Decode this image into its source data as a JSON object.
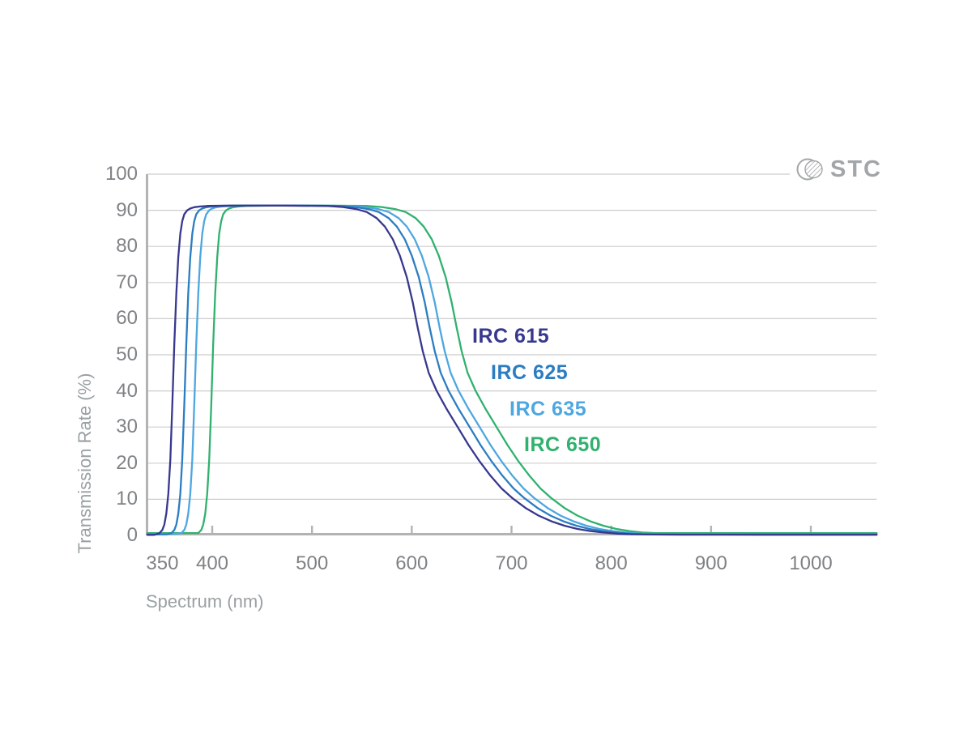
{
  "logo": {
    "text": "STC",
    "mark": "hatched-circle-lens-icon"
  },
  "chart_data": {
    "type": "line",
    "title": "",
    "xlabel": "Spectrum (nm)",
    "ylabel": "Transmission Rate (%)",
    "xlim": [
      335,
      1066
    ],
    "ylim": [
      0,
      100
    ],
    "x_tick_labels": [
      350,
      400,
      500,
      600,
      700,
      800,
      900,
      1000
    ],
    "x_tick_marks": [
      400,
      500,
      600,
      700,
      800,
      900,
      1000
    ],
    "y_ticks": [
      0,
      10,
      20,
      30,
      40,
      50,
      60,
      70,
      80,
      90,
      100
    ],
    "grid": "horizontal",
    "legend_position": "inside-right-of-falling-edges",
    "plateau_transmission_pct": 91,
    "colors": {
      "gridline": "#cdcdcd",
      "axis": "#b3b3b3",
      "tick_text": "#7f8285",
      "axis_title_text": "#9aa0a3",
      "logo": "#a3a6a8"
    },
    "series": [
      {
        "name": "IRC 615",
        "color": "#37388e",
        "shift_nm": 0,
        "tail_floor_pct": 0.15,
        "cuton_50pct_nm": 362,
        "cutoff_50pct_nm": 614
      },
      {
        "name": "IRC 625",
        "color": "#2b7dc2",
        "shift_nm": 12,
        "tail_floor_pct": 0.3,
        "cuton_50pct_nm": 374,
        "cutoff_50pct_nm": 626
      },
      {
        "name": "IRC 635",
        "color": "#4da7e0",
        "shift_nm": 22,
        "tail_floor_pct": 0.45,
        "cuton_50pct_nm": 384,
        "cutoff_50pct_nm": 636
      },
      {
        "name": "IRC 650",
        "color": "#30b16e",
        "shift_nm": 39,
        "tail_floor_pct": 0.65,
        "cuton_50pct_nm": 401,
        "cutoff_50pct_nm": 653
      }
    ],
    "base_curve_nm_pct": [
      [
        335,
        0
      ],
      [
        342,
        0.15
      ],
      [
        347,
        0.6
      ],
      [
        350,
        1.5
      ],
      [
        352,
        3
      ],
      [
        354,
        6
      ],
      [
        356,
        11.5
      ],
      [
        358,
        21
      ],
      [
        360,
        36
      ],
      [
        362,
        53
      ],
      [
        364,
        67
      ],
      [
        366,
        77
      ],
      [
        368,
        83.5
      ],
      [
        370,
        87
      ],
      [
        372,
        88.9
      ],
      [
        375,
        90
      ],
      [
        378,
        90.5
      ],
      [
        382,
        90.85
      ],
      [
        388,
        91.05
      ],
      [
        396,
        91.2
      ],
      [
        420,
        91.3
      ],
      [
        470,
        91.3
      ],
      [
        515,
        91.2
      ],
      [
        531,
        90.9
      ],
      [
        545,
        90.3
      ],
      [
        555,
        89.5
      ],
      [
        565,
        87.8
      ],
      [
        573,
        85.5
      ],
      [
        581,
        82
      ],
      [
        588,
        77.5
      ],
      [
        595,
        71.5
      ],
      [
        601,
        64.5
      ],
      [
        606,
        57.5
      ],
      [
        611,
        51
      ],
      [
        617,
        45
      ],
      [
        625,
        40
      ],
      [
        635,
        35
      ],
      [
        646,
        30
      ],
      [
        657,
        25
      ],
      [
        668,
        20.5
      ],
      [
        679,
        16.5
      ],
      [
        690,
        13
      ],
      [
        701,
        10.3
      ],
      [
        714,
        7.6
      ],
      [
        727,
        5.5
      ],
      [
        740,
        3.9
      ],
      [
        753,
        2.7
      ],
      [
        766,
        1.8
      ],
      [
        779,
        1.2
      ],
      [
        792,
        0.8
      ],
      [
        806,
        0.5
      ],
      [
        820,
        0.33
      ],
      [
        840,
        0.25
      ],
      [
        870,
        0.2
      ],
      [
        950,
        0.18
      ],
      [
        1066,
        0.18
      ]
    ]
  }
}
